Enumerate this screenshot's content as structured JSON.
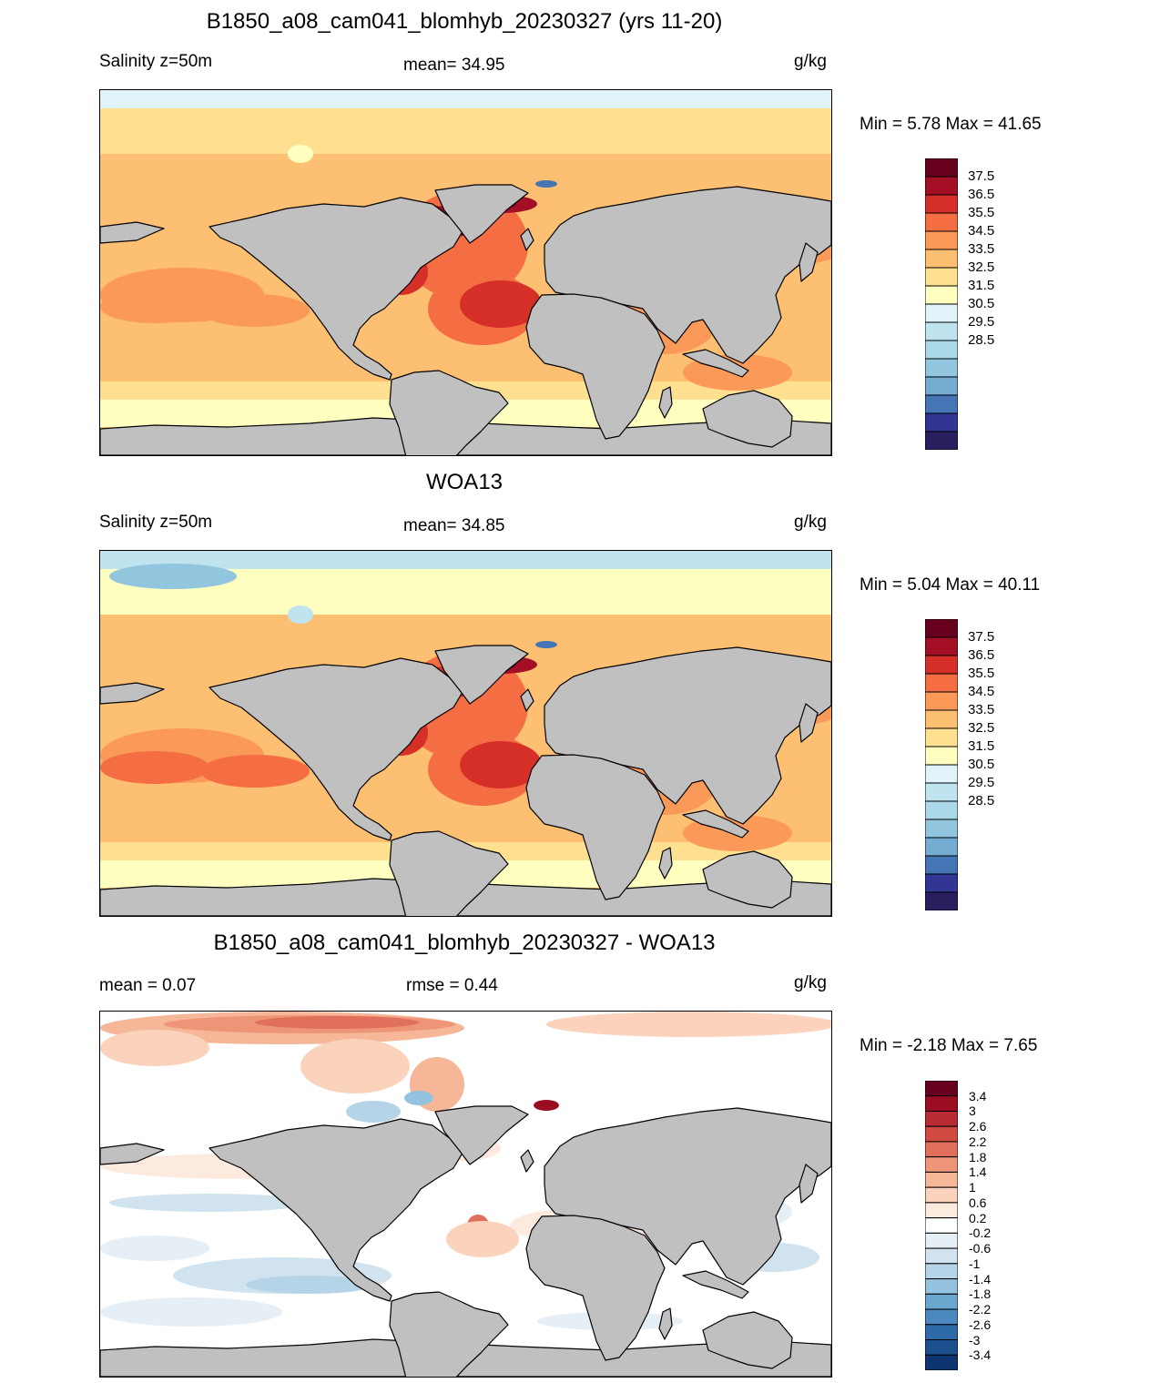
{
  "panels": [
    {
      "title": "B1850_a08_cam041_blomhyb_20230327 (yrs 11-20)",
      "left_label": "Salinity z=50m",
      "center_label": "mean=  34.95",
      "units": "g/kg",
      "minmax": "Min =   5.78 Max =  41.65",
      "colorbar_labels": [
        "37.5",
        "36.5",
        "35.5",
        "34.5",
        "33.5",
        "32.5",
        "31.5",
        "30.5",
        "29.5",
        "28.5"
      ],
      "colors": [
        "#67001f",
        "#a50f26",
        "#d62f27",
        "#f46d43",
        "#fb9a58",
        "#fdbf71",
        "#fee090",
        "#ffffbf",
        "#e0f3f8",
        "#c0e4ef",
        "#abd9e9",
        "#92c5de",
        "#74add1",
        "#4575b4",
        "#313695",
        "#2a1f5e"
      ]
    },
    {
      "title": "WOA13",
      "left_label": "Salinity z=50m",
      "center_label": "mean=  34.85",
      "units": "g/kg",
      "minmax": "Min =   5.04 Max =  40.11",
      "colorbar_labels": [
        "37.5",
        "36.5",
        "35.5",
        "34.5",
        "33.5",
        "32.5",
        "31.5",
        "30.5",
        "29.5",
        "28.5"
      ],
      "colors": [
        "#67001f",
        "#a50f26",
        "#d62f27",
        "#f46d43",
        "#fb9a58",
        "#fdbf71",
        "#fee090",
        "#ffffbf",
        "#e0f3f8",
        "#c0e4ef",
        "#abd9e9",
        "#92c5de",
        "#74add1",
        "#4575b4",
        "#313695",
        "#2a1f5e"
      ]
    },
    {
      "title": "B1850_a08_cam041_blomhyb_20230327 - WOA13",
      "left_label": "mean =   0.07",
      "center_label": "rmse =   0.44",
      "units": "g/kg",
      "minmax": "Min =  -2.18 Max =   7.65",
      "colorbar_labels": [
        "3.4",
        "3",
        "2.6",
        "2.2",
        "1.8",
        "1.4",
        "1",
        "0.6",
        "0.2",
        "-0.2",
        "-0.6",
        "-1",
        "-1.4",
        "-1.8",
        "-2.2",
        "-2.6",
        "-3",
        "-3.4"
      ],
      "colors": [
        "#67001f",
        "#9b0e22",
        "#b82b32",
        "#d04a42",
        "#e0705b",
        "#ee9577",
        "#f6b698",
        "#fbd3bd",
        "#fdeadf",
        "#ffffff",
        "#e6eff6",
        "#d0e3ef",
        "#b5d4e8",
        "#94c2df",
        "#6ba6cf",
        "#4a88bf",
        "#2f6aa8",
        "#1c4f8e",
        "#0d3470"
      ]
    }
  ],
  "colors": {
    "land": "#c0c0c0",
    "coast": "#000000"
  }
}
